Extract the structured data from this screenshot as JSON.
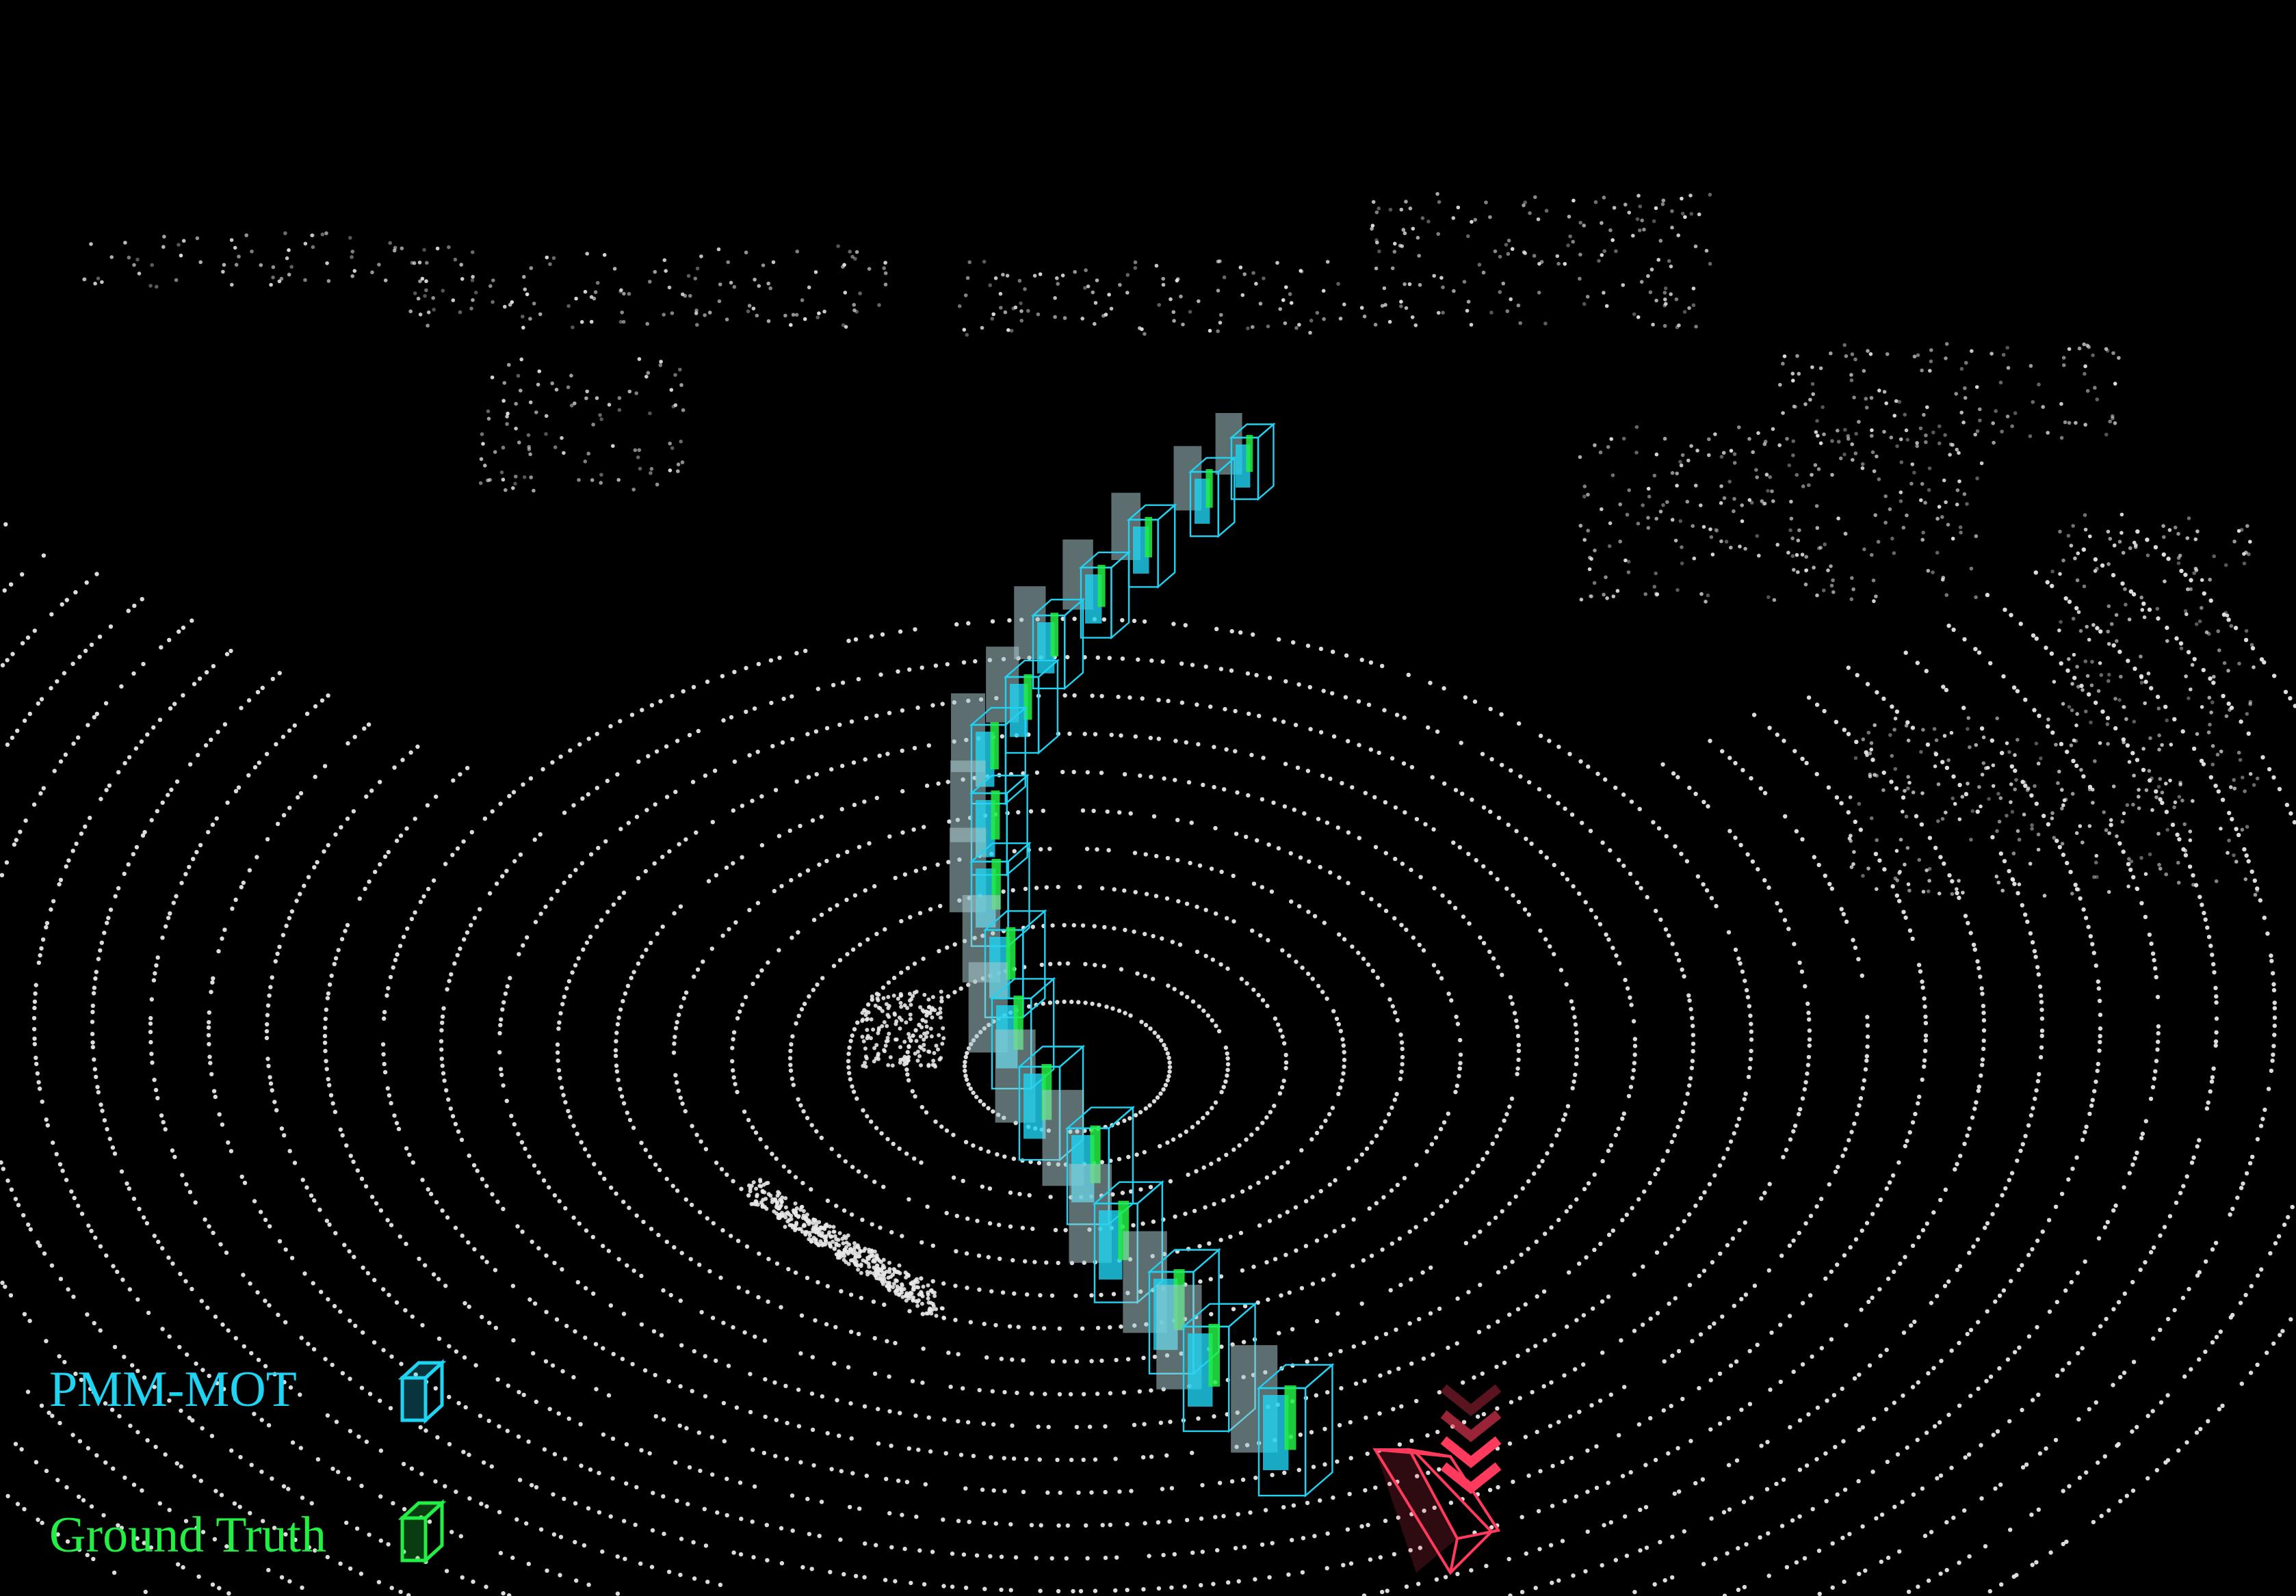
{
  "legend": {
    "items": [
      {
        "label": "PMM-MOT",
        "color": "#1fd3f2",
        "icon": "cyan-box-icon"
      },
      {
        "label": "Ground Truth",
        "color": "#22ee44",
        "icon": "green-box-icon"
      }
    ]
  },
  "colors": {
    "background": "#000000",
    "points": "#e8e8e8",
    "prediction": "#1fd3f2",
    "ground_truth": "#22ee44",
    "ego_vehicle": "#ff3a5c",
    "translucent_box": "#a8c8cc"
  },
  "ego_marker_icon": "double-chevron-down-icon"
}
